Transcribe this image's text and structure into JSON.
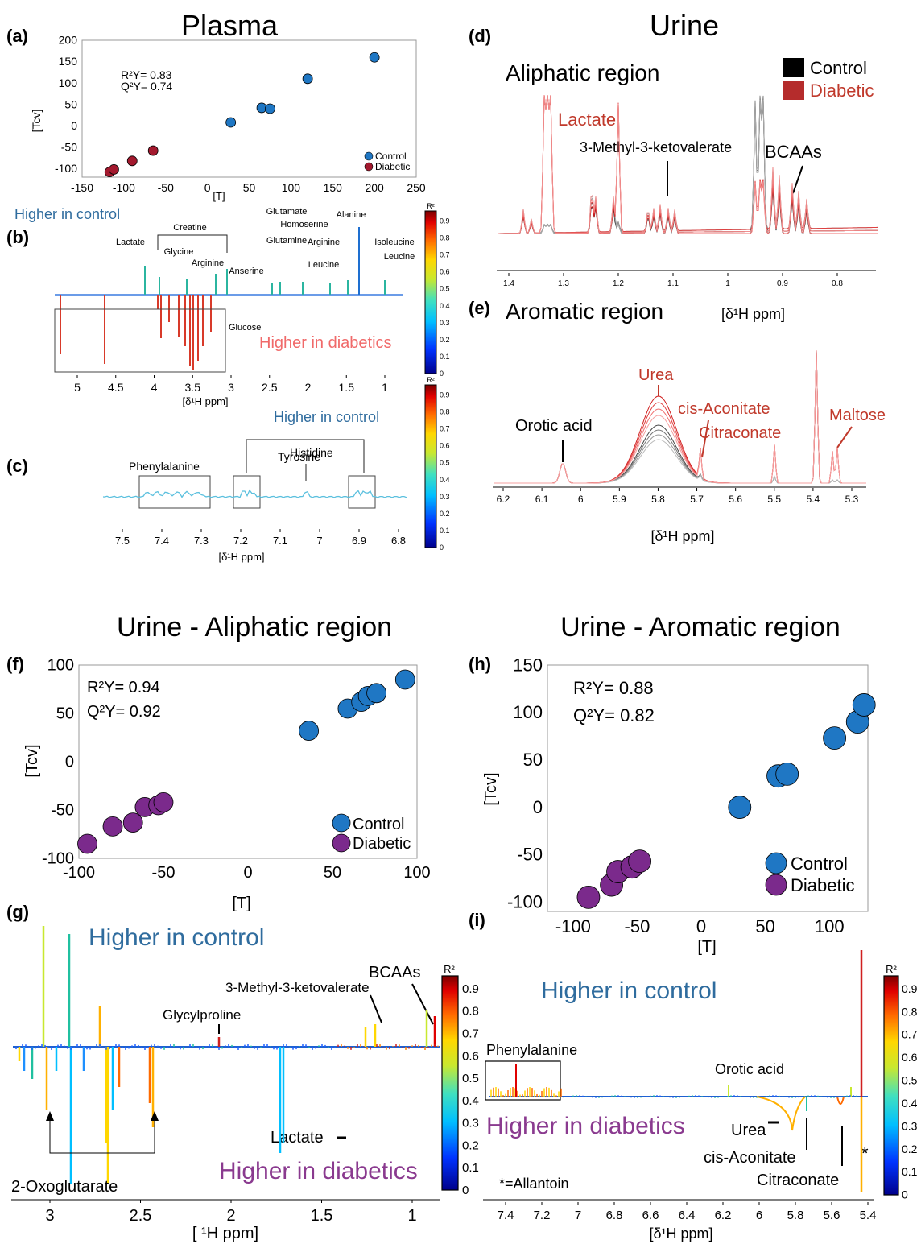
{
  "panels": {
    "a": "(a)",
    "b": "(b)",
    "c": "(c)",
    "d": "(d)",
    "e": "(e)",
    "f": "(f)",
    "g": "(g)",
    "h": "(h)",
    "i": "(i)"
  },
  "titles": {
    "plasma": "Plasma",
    "urine": "Urine",
    "urine_aliphatic": "Urine - Aliphatic region",
    "urine_aromatic": "Urine - Aromatic region"
  },
  "colors": {
    "control": "#1f77c4",
    "diabetic_plasma": "#a3192e",
    "diabetic_urine": "#7b2a8c",
    "higher_control_text": "#2f6c9e",
    "higher_diabetic_plasma_text": "#f06a6a",
    "higher_diabetic_urine_text": "#8a3a8f",
    "urine_red": "#c0392b"
  },
  "plot_a": {
    "r2": "R²Y= 0.83",
    "q2": "Q²Y= 0.74",
    "xlabel": "[T]",
    "ylabel": "[Tcv]",
    "xticks": [
      "-150",
      "-100",
      "-50",
      "0",
      "50",
      "100",
      "150",
      "200",
      "250"
    ],
    "yticks": [
      "200",
      "150",
      "100",
      "50",
      "0",
      "-50",
      "-100"
    ],
    "legend": [
      "Control",
      "Diabetic"
    ]
  },
  "plot_b": {
    "higher_control": "Higher in control",
    "higher_diabetics": "Higher in diabetics",
    "xlabel": "[δ¹H ppm]",
    "xticks": [
      "5",
      "4.5",
      "4",
      "3.5",
      "3",
      "2.5",
      "2",
      "1.5",
      "1"
    ],
    "labels": [
      "Lactate",
      "Creatine",
      "Glycine",
      "Arginine",
      "Anserine",
      "Glutamate",
      "Glutamine",
      "Homoserine",
      "Arginine",
      "Leucine",
      "Alanine",
      "Isoleucine",
      "Leucine",
      "Glucose"
    ]
  },
  "plot_c": {
    "higher_control": "Higher in control",
    "xlabel": "[δ¹H ppm]",
    "xticks": [
      "7.5",
      "7.4",
      "7.3",
      "7.2",
      "7.1",
      "7",
      "6.9",
      "6.8"
    ],
    "labels": [
      "Phenylalanine",
      "Tyrosine",
      "Histidine"
    ]
  },
  "colorbar": {
    "label": "R²",
    "ticks": [
      "0.9",
      "0.8",
      "0.7",
      "0.6",
      "0.5",
      "0.4",
      "0.3",
      "0.2",
      "0.1",
      "0"
    ]
  },
  "plot_d": {
    "region": "Aliphatic region",
    "legend": [
      "Control",
      "Diabetic"
    ],
    "labels": [
      "Lactate",
      "3-Methyl-3-ketovalerate",
      "BCAAs"
    ],
    "xticks": [
      "1.4",
      "1.3",
      "1.2",
      "1.1",
      "1",
      "0.9",
      "0.8"
    ]
  },
  "plot_e": {
    "region": "Aromatic region",
    "xlabel_top": "[δ¹H ppm]",
    "xlabel": "[δ¹H ppm]",
    "labels": [
      "Orotic acid",
      "Urea",
      "cis-Aconitate",
      "Citraconate",
      "Maltose"
    ],
    "xticks": [
      "6.2",
      "6.1",
      "6",
      "5.9",
      "5.8",
      "5.7",
      "5.6",
      "5.5",
      "5.4",
      "5.3"
    ]
  },
  "plot_f": {
    "r2": "R²Y= 0.94",
    "q2": "Q²Y= 0.92",
    "xlabel": "[T]",
    "ylabel": "[Tcv]",
    "xticks": [
      "-100",
      "-50",
      "0",
      "50",
      "100"
    ],
    "yticks": [
      "100",
      "50",
      "0",
      "-50",
      "-100"
    ],
    "legend": [
      "Control",
      "Diabetic"
    ]
  },
  "plot_g": {
    "higher_control": "Higher in control",
    "higher_diabetics": "Higher in diabetics",
    "xlabel": "[ ¹H ppm]",
    "xticks": [
      "3",
      "2.5",
      "2",
      "1.5",
      "1"
    ],
    "labels": [
      "BCAAs",
      "3-Methyl-3-ketovalerate",
      "Glycylproline",
      "Lactate",
      "2-Oxoglutarate"
    ]
  },
  "plot_h": {
    "r2": "R²Y= 0.88",
    "q2": "Q²Y= 0.82",
    "xlabel": "[T]",
    "ylabel": "[Tcv]",
    "xticks": [
      "-100",
      "-50",
      "0",
      "50",
      "100"
    ],
    "yticks": [
      "150",
      "100",
      "50",
      "0",
      "-50",
      "-100"
    ],
    "legend": [
      "Control",
      "Diabetic"
    ]
  },
  "plot_i": {
    "higher_control": "Higher in control",
    "higher_diabetics": "Higher in diabetics",
    "xlabel": "[δ¹H ppm]",
    "footnote": "*=Allantoin",
    "star": "*",
    "xticks": [
      "7.4",
      "7.2",
      "7",
      "6.8",
      "6.6",
      "6.4",
      "6.2",
      "6",
      "5.8",
      "5.6",
      "5.4"
    ],
    "labels": [
      "Phenylalanine",
      "Orotic acid",
      "Urea",
      "cis-Aconitate",
      "Citraconate"
    ]
  },
  "chart_data": [
    {
      "type": "scatter",
      "panel": "a",
      "title": "Plasma",
      "xlabel": "[T]",
      "ylabel": "[Tcv]",
      "xlim": [
        -150,
        250
      ],
      "ylim": [
        -120,
        200
      ],
      "series": [
        {
          "name": "Control",
          "x": [
            28,
            65,
            75,
            120,
            200
          ],
          "y": [
            8,
            42,
            40,
            110,
            160
          ]
        },
        {
          "name": "Diabetic",
          "x": [
            -117,
            -112,
            -90,
            -65
          ],
          "y": [
            -108,
            -102,
            -82,
            -58
          ]
        }
      ]
    },
    {
      "type": "scatter",
      "panel": "f",
      "title": "Urine - Aliphatic region",
      "xlabel": "[T]",
      "ylabel": "[Tcv]",
      "xlim": [
        -100,
        100
      ],
      "ylim": [
        -100,
        100
      ],
      "series": [
        {
          "name": "Control",
          "x": [
            36,
            59,
            67,
            71,
            76,
            93
          ],
          "y": [
            32,
            55,
            62,
            68,
            71,
            85
          ]
        },
        {
          "name": "Diabetic",
          "x": [
            -95,
            -80,
            -68,
            -61,
            -53,
            -50
          ],
          "y": [
            -85,
            -67,
            -63,
            -47,
            -45,
            -42
          ]
        }
      ]
    },
    {
      "type": "scatter",
      "panel": "h",
      "title": "Urine - Aromatic region",
      "xlabel": "[T]",
      "ylabel": "[Tcv]",
      "xlim": [
        -120,
        130
      ],
      "ylim": [
        -110,
        150
      ],
      "series": [
        {
          "name": "Control",
          "x": [
            30,
            60,
            67,
            104,
            122,
            127
          ],
          "y": [
            0,
            33,
            35,
            73,
            90,
            108
          ]
        },
        {
          "name": "Diabetic",
          "x": [
            -88,
            -70,
            -65,
            -54,
            -48
          ],
          "y": [
            -95,
            -82,
            -68,
            -63,
            -57
          ]
        }
      ]
    }
  ]
}
